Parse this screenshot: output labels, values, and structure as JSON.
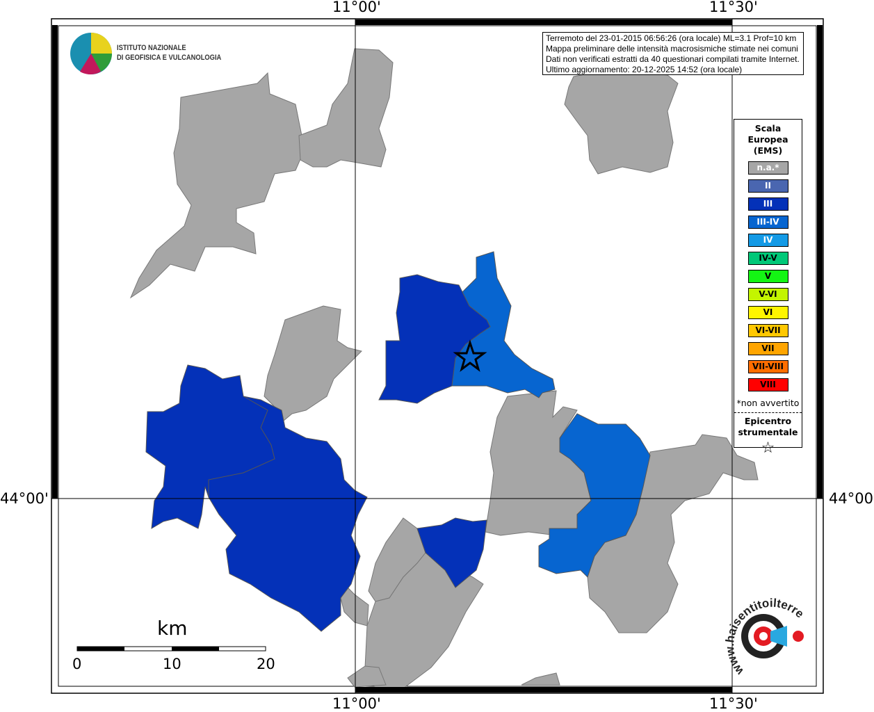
{
  "map": {
    "axis_labels": {
      "top": [
        "11°00'",
        "11°30'"
      ],
      "bottom": [
        "11°00'",
        "11°30'"
      ],
      "left": [
        "44°00'"
      ],
      "right": [
        "44°00'"
      ]
    },
    "colors": {
      "na": "#a6a6a6",
      "III": "#0431b8",
      "III-IV": "#0765d0",
      "background": "#ffffff"
    },
    "epicenter_icon": "star-icon"
  },
  "logo": {
    "line1": "ISTITUTO NAZIONALE",
    "line2": "DI GEOFISICA E VULCANOLOGIA"
  },
  "info": {
    "line1": "Terremoto del 23-01-2015 06:56:26 (ora locale) ML=3.1 Prof=10 km",
    "line2": "Mappa preliminare delle intensità macrosismiche stimate nei comuni",
    "line3": "Dati non verificati estratti da 40 questionari compilati tramite Internet.",
    "line4": "Ultimo aggiornamento: 20-12-2025 14:52 (ora locale)"
  },
  "legend": {
    "title1": "Scala",
    "title2": "Europea",
    "title3": "(EMS)",
    "items": [
      {
        "label": "n.a.*",
        "color": "#a6a6a6",
        "text": "#ffffff"
      },
      {
        "label": "II",
        "color": "#4a66b0",
        "text": "#ffffff"
      },
      {
        "label": "III",
        "color": "#0431b8",
        "text": "#ffffff"
      },
      {
        "label": "III-IV",
        "color": "#0765d0",
        "text": "#ffffff"
      },
      {
        "label": "IV",
        "color": "#139ae6",
        "text": "#ffffff"
      },
      {
        "label": "IV-V",
        "color": "#00c878",
        "text": "#000000"
      },
      {
        "label": "V",
        "color": "#14f514",
        "text": "#000000"
      },
      {
        "label": "V-VI",
        "color": "#c3f500",
        "text": "#000000"
      },
      {
        "label": "VI",
        "color": "#fff500",
        "text": "#000000"
      },
      {
        "label": "VI-VII",
        "color": "#ffc800",
        "text": "#000000"
      },
      {
        "label": "VII",
        "color": "#ffa500",
        "text": "#000000"
      },
      {
        "label": "VII-VIII",
        "color": "#ff6e00",
        "text": "#000000"
      },
      {
        "label": "VIII",
        "color": "#ff0000",
        "text": "#000000"
      }
    ],
    "note": "*non avvertito",
    "epi1": "Epicentro",
    "epi2": "strumentale",
    "epi_symbol": "☆"
  },
  "scalebar": {
    "unit": "km",
    "ticks": [
      "0",
      "10",
      "20"
    ]
  },
  "hst": {
    "text": "www.haisentitoilterremoto.it"
  }
}
